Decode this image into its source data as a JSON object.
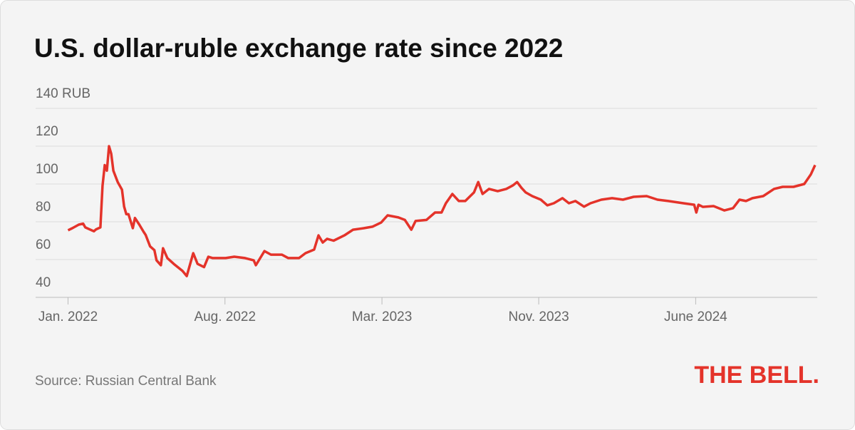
{
  "chart_data": {
    "type": "line",
    "title": "U.S. dollar-ruble exchange rate since 2022",
    "source": "Source: Russian Central Bank",
    "logo": "THE BELL.",
    "grid": true,
    "color": "#e4332a",
    "x": [
      0,
      0.2,
      0.5,
      0.7,
      0.8,
      1.2,
      1.3,
      1.5,
      1.6,
      1.7,
      1.8,
      1.9,
      2.0,
      2.1,
      2.3,
      2.5,
      2.6,
      2.7,
      2.8,
      3.0,
      3.1,
      3.3,
      3.5,
      3.6,
      3.8,
      4.0,
      4.1,
      4.3,
      4.4,
      4.6,
      4.9,
      5.3,
      5.5,
      5.8,
      6.0,
      6.3,
      6.5,
      6.7,
      7.3,
      7.7,
      8.2,
      8.6,
      8.7,
      8.9,
      9.1,
      9.4,
      9.9,
      10.2,
      10.7,
      11.0,
      11.4,
      11.6,
      11.8,
      12.0,
      12.3,
      12.8,
      13.2,
      13.7,
      14.1,
      14.5,
      14.8,
      15.3,
      15.6,
      15.9,
      16.1,
      16.6,
      17.0,
      17.3,
      17.5,
      17.8,
      18.1,
      18.4,
      18.8,
      19.0,
      19.2,
      19.5,
      19.9,
      20.3,
      20.6,
      20.8,
      21.0,
      21.2,
      21.5,
      21.9,
      22.2,
      22.5,
      22.9,
      23.2,
      23.5,
      23.9,
      24.2,
      24.7,
      25.2,
      25.7,
      26.2,
      26.8,
      27.3,
      27.8,
      28.5,
      29.0,
      29.1,
      29.2,
      29.4,
      29.9,
      30.4,
      30.8,
      31.1,
      31.4,
      31.7,
      32.2,
      32.7,
      33.1,
      33.6,
      34.1,
      34.4,
      34.6
    ],
    "values": [
      75.5,
      76.6,
      78.5,
      79,
      77,
      75,
      76,
      77,
      99,
      110,
      107,
      120,
      116,
      107,
      101,
      97,
      88,
      84,
      84,
      76.6,
      82,
      78.5,
      74.7,
      73,
      67,
      65,
      59.6,
      57,
      66,
      60.8,
      57.7,
      54,
      51.3,
      63.4,
      57.7,
      56,
      61.5,
      60.8,
      60.8,
      61.5,
      60.8,
      59.6,
      57,
      60.8,
      64.5,
      62.6,
      62.6,
      60.8,
      60.8,
      63.4,
      65.3,
      72.8,
      69,
      71,
      70,
      72.8,
      75.8,
      76.6,
      77.4,
      79.6,
      83.4,
      82.3,
      81,
      75.8,
      80.4,
      81,
      84.9,
      84.9,
      89.8,
      94.7,
      91,
      91,
      95.5,
      101,
      94.7,
      97.4,
      96.2,
      97.4,
      99.2,
      101,
      98,
      95.5,
      93.6,
      91.7,
      88.7,
      89.8,
      92.5,
      89.8,
      91,
      88,
      89.8,
      91.7,
      92.5,
      91.7,
      93.2,
      93.6,
      91.7,
      91,
      89.8,
      89,
      84.9,
      89,
      87.9,
      88.3,
      86,
      87.2,
      91.7,
      91,
      92.5,
      93.6,
      97.4,
      98.5,
      98.5,
      100,
      105,
      110
    ],
    "xlim": [
      -1.5,
      34.7
    ],
    "xticks": [
      {
        "value": 0,
        "label": "Jan. 2022"
      },
      {
        "value": 7.27,
        "label": "Aug. 2022"
      },
      {
        "value": 14.54,
        "label": "Mar. 2023"
      },
      {
        "value": 21.8,
        "label": "Nov. 2023"
      },
      {
        "value": 29.07,
        "label": "June 2024"
      }
    ],
    "ylim": [
      40,
      140
    ],
    "yticks": [
      40,
      60,
      80,
      100,
      120,
      {
        "value": 140,
        "label": "140 RUB"
      }
    ]
  }
}
